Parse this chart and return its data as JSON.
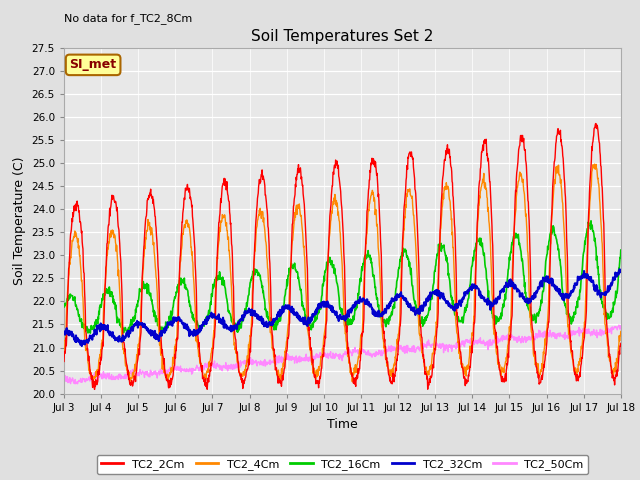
{
  "title": "Soil Temperatures Set 2",
  "topleft_note": "No data for f_TC2_8Cm",
  "xlabel": "Time",
  "ylabel": "Soil Temperature (C)",
  "ylim": [
    20.0,
    27.5
  ],
  "yticks": [
    20.0,
    20.5,
    21.0,
    21.5,
    22.0,
    22.5,
    23.0,
    23.5,
    24.0,
    24.5,
    25.0,
    25.5,
    26.0,
    26.5,
    27.0,
    27.5
  ],
  "xtick_labels": [
    "Jul 3",
    "Jul 4",
    "Jul 5",
    "Jul 6",
    "Jul 7",
    "Jul 8",
    "Jul 9",
    "Jul 10",
    "Jul 11",
    "Jul 12",
    "Jul 13",
    "Jul 14",
    "Jul 15",
    "Jul 16",
    "Jul 17",
    "Jul 18"
  ],
  "series": {
    "TC2_2Cm": {
      "color": "#ff0000",
      "lw": 1.0
    },
    "TC2_4Cm": {
      "color": "#ff8800",
      "lw": 1.0
    },
    "TC2_16Cm": {
      "color": "#00cc00",
      "lw": 1.2
    },
    "TC2_32Cm": {
      "color": "#0000cc",
      "lw": 1.5
    },
    "TC2_50Cm": {
      "color": "#ff88ff",
      "lw": 1.0
    }
  },
  "legend_label": "SI_met",
  "legend_bg": "#ffff99",
  "legend_border": "#aa6600",
  "fig_bg": "#e0e0e0",
  "plot_bg": "#e8e8e8",
  "grid_color": "#ffffff",
  "n_points": 1440
}
